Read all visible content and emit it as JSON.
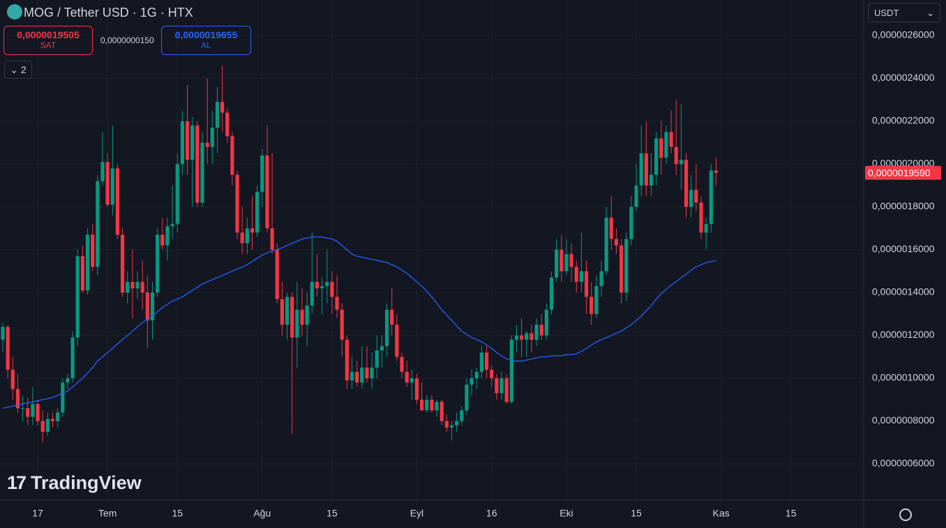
{
  "ui": {
    "symbol": "MOG / Tether USD · 1G · HTX",
    "sell_price": "0,0000019505",
    "sell_label": "SAT",
    "spread": "0,0000000150",
    "buy_price": "0,0000019655",
    "buy_label": "AL",
    "indicators": "2",
    "currency": "USDT",
    "brand": "TradingView"
  },
  "chart_data": {
    "type": "candlestick",
    "categories": [
      null,
      null,
      null,
      null,
      null,
      null,
      null,
      "17",
      null,
      null,
      null,
      null,
      null,
      null,
      null,
      null,
      null,
      null,
      null,
      null,
      null,
      "Tem",
      null,
      null,
      null,
      null,
      null,
      null,
      null,
      null,
      null,
      null,
      null,
      null,
      null,
      "15",
      null,
      null,
      null,
      null,
      null,
      null,
      null,
      null,
      null,
      null,
      null,
      null,
      null,
      null,
      null,
      null,
      "Ağu",
      null,
      null,
      null,
      null,
      null,
      null,
      null,
      null,
      null,
      null,
      null,
      null,
      null,
      "15",
      null,
      null,
      null,
      null,
      null,
      null,
      null,
      null,
      null,
      null,
      null,
      null,
      null,
      null,
      null,
      null,
      "Eyl",
      null,
      null,
      null,
      null,
      null,
      null,
      null,
      null,
      null,
      null,
      null,
      null,
      null,
      null,
      "16",
      null,
      null,
      null,
      null,
      null,
      null,
      null,
      null,
      null,
      null,
      null,
      null,
      null,
      null,
      "Eki",
      null,
      null,
      null,
      null,
      null,
      null,
      null,
      null,
      null,
      null,
      null,
      null,
      null,
      "15",
      null,
      null,
      null,
      null,
      null,
      null,
      null,
      null,
      null,
      null,
      null,
      null,
      null,
      null,
      null,
      null,
      "Kas",
      null,
      null,
      null,
      null,
      null,
      null,
      null,
      null,
      null,
      null,
      null,
      null,
      null,
      "15",
      null,
      null,
      null,
      null,
      null,
      null,
      null,
      null,
      null,
      null,
      null,
      null,
      null,
      null
    ],
    "open": [
      1.18e-06,
      1.24e-06,
      1.04e-06,
      9.5e-07,
      8.6e-07,
      8.6e-07,
      8.2e-07,
      8.8e-07,
      8e-07,
      7.5e-07,
      8.1e-07,
      8e-07,
      8.4e-07,
      9.8e-07,
      1e-06,
      1.19e-06,
      1.57e-06,
      1.41e-06,
      1.67e-06,
      1.52e-06,
      1.92e-06,
      2.01e-06,
      1.81e-06,
      1.98e-06,
      1.67e-06,
      1.4e-06,
      1.45e-06,
      1.42e-06,
      1.45e-06,
      1.4e-06,
      1.27e-06,
      1.4e-06,
      1.67e-06,
      1.62e-06,
      1.71e-06,
      1.72e-06,
      2e-06,
      2.2e-06,
      2.02e-06,
      2.18e-06,
      1.82e-06,
      2.1e-06,
      2.08e-06,
      2.17e-06,
      2.29e-06,
      2.24e-06,
      2.13e-06,
      1.95e-06,
      1.68e-06,
      1.63e-06,
      1.7e-06,
      1.68e-06,
      1.87e-06,
      2.04e-06,
      1.7e-06,
      1.6e-06,
      1.37e-06,
      1.25e-06,
      1.38e-06,
      1.19e-06,
      1.32e-06,
      1.25e-06,
      1.34e-06,
      1.45e-06,
      1.42e-06,
      1.43e-06,
      1.45e-06,
      1.38e-06,
      1.32e-06,
      1.18e-06,
      9.9e-07,
      1.03e-06,
      9.8e-07,
      1.05e-06,
      1e-06,
      1.05e-06,
      1.13e-06,
      1.15e-06,
      1.32e-06,
      1.25e-06,
      1.1e-06,
      1.03e-06,
      9.8e-07,
      1e-06,
      9e-07,
      8.5e-07,
      9e-07,
      8.5e-07,
      8.9e-07,
      8e-07,
      7.7e-07,
      7.8e-07,
      8e-07,
      8.5e-07,
      9.7e-07,
      1e-06,
      1.03e-06,
      1.12e-06,
      1.04e-06,
      1e-06,
      9.3e-07,
      1e-06,
      8.9e-07,
      1.18e-06,
      1.2e-06,
      1.18e-06,
      1.21e-06,
      1.18e-06,
      1.25e-06,
      1.2e-06,
      1.32e-06,
      1.47e-06,
      1.6e-06,
      1.5e-06,
      1.58e-06,
      1.52e-06,
      1.45e-06,
      1.5e-06,
      1.38e-06,
      1.3e-06,
      1.43e-06,
      1.5e-06,
      1.75e-06,
      1.65e-06,
      1.62e-06,
      1.4e-06,
      1.65e-06,
      1.8e-06,
      1.9e-06,
      2.05e-06,
      1.9e-06,
      1.95e-06,
      2.12e-06,
      2.03e-06,
      2.15e-06,
      2.08e-06,
      2e-06,
      2.02e-06,
      1.8e-06,
      1.88e-06,
      1.82e-06,
      1.68e-06,
      1.72e-06,
      1.97e-06,
      null,
      null,
      null,
      null,
      null,
      null,
      null,
      null,
      null,
      null,
      null,
      null,
      null,
      null,
      null,
      null,
      null,
      null,
      null,
      null,
      null,
      null,
      null,
      null,
      null,
      null,
      null,
      null,
      null
    ],
    "high": [
      1.26e-06,
      1.25e-06,
      1.1e-06,
      1.02e-06,
      9.2e-07,
      9.1e-07,
      9.6e-07,
      9e-07,
      8.5e-07,
      8.4e-07,
      8.4e-07,
      8.6e-07,
      1e-06,
      1.02e-06,
      1.22e-06,
      1.6e-06,
      1.62e-06,
      1.7e-06,
      1.72e-06,
      1.95e-06,
      2.15e-06,
      2.05e-06,
      2.18e-06,
      2e-06,
      1.7e-06,
      1.5e-06,
      1.6e-06,
      1.5e-06,
      1.55e-06,
      1.48e-06,
      1.45e-06,
      1.7e-06,
      1.75e-06,
      1.75e-06,
      1.9e-06,
      2.05e-06,
      2.25e-06,
      2.37e-06,
      2.22e-06,
      2.2e-06,
      2.15e-06,
      2.4e-06,
      2.25e-06,
      2.36e-06,
      2.46e-06,
      2.26e-06,
      2.15e-06,
      1.97e-06,
      1.8e-06,
      1.75e-06,
      1.85e-06,
      1.9e-06,
      2.07e-06,
      2.18e-06,
      2.05e-06,
      1.63e-06,
      1.45e-06,
      1.4e-06,
      1.4e-06,
      1.45e-06,
      1.42e-06,
      1.4e-06,
      1.68e-06,
      1.58e-06,
      1.47e-06,
      1.6e-06,
      1.5e-06,
      1.48e-06,
      1.35e-06,
      1.2e-06,
      1.1e-06,
      1.08e-06,
      1.15e-06,
      1.15e-06,
      1.12e-06,
      1.2e-06,
      1.2e-06,
      1.35e-06,
      1.42e-06,
      1.3e-06,
      1.12e-06,
      1.08e-06,
      1.04e-06,
      1.02e-06,
      9.8e-07,
      9.2e-07,
      9.2e-07,
      9e-07,
      9e-07,
      8.3e-07,
      8e-07,
      8.4e-07,
      8.7e-07,
      1e-06,
      1.04e-06,
      1.05e-06,
      1.15e-06,
      1.15e-06,
      1.06e-06,
      1.02e-06,
      1.03e-06,
      1.02e-06,
      1.2e-06,
      1.25e-06,
      1.28e-06,
      1.22e-06,
      1.25e-06,
      1.28e-06,
      1.3e-06,
      1.35e-06,
      1.5e-06,
      1.65e-06,
      1.67e-06,
      1.65e-06,
      1.63e-06,
      1.55e-06,
      1.68e-06,
      1.55e-06,
      1.45e-06,
      1.48e-06,
      1.55e-06,
      1.8e-06,
      1.85e-06,
      1.7e-06,
      1.65e-06,
      1.68e-06,
      1.85e-06,
      2e-06,
      2.18e-06,
      2.2e-06,
      2.05e-06,
      2.15e-06,
      2.2e-06,
      2.18e-06,
      2.25e-06,
      2.3e-06,
      2.28e-06,
      2.05e-06,
      1.95e-06,
      2e-06,
      1.85e-06,
      1.75e-06,
      2e-06,
      2.03e-06,
      null,
      null,
      null,
      null,
      null,
      null,
      null,
      null,
      null,
      null,
      null,
      null,
      null,
      null,
      null,
      null,
      null,
      null,
      null,
      null,
      null,
      null,
      null,
      null,
      null,
      null,
      null,
      null,
      null
    ],
    "low": [
      1.12e-06,
      1e-06,
      9e-07,
      8.4e-07,
      8e-07,
      7.8e-07,
      7.8e-07,
      7.8e-07,
      7e-07,
      7.3e-07,
      7.7e-07,
      7.7e-07,
      8.2e-07,
      9.5e-07,
      9.8e-07,
      1.15e-06,
      1.4e-06,
      1.39e-06,
      1.5e-06,
      1.48e-06,
      1.9e-06,
      1.8e-06,
      1.76e-06,
      1.65e-06,
      1.38e-06,
      1.35e-06,
      1.28e-06,
      1.37e-06,
      1.32e-06,
      1.14e-06,
      1.18e-06,
      1.38e-06,
      1.6e-06,
      1.55e-06,
      1.65e-06,
      1.68e-06,
      1.95e-06,
      1.95e-06,
      1.8e-06,
      1.8e-06,
      1.8e-06,
      2e-06,
      2e-06,
      2.05e-06,
      2.15e-06,
      2.1e-06,
      1.9e-06,
      1.65e-06,
      1.58e-06,
      1.58e-06,
      1.6e-06,
      1.66e-06,
      1.8e-06,
      1.68e-06,
      1.58e-06,
      1.35e-06,
      1.2e-06,
      1.18e-06,
      7.4e-07,
      1.05e-06,
      1.2e-06,
      1.15e-06,
      1.3e-06,
      1.38e-06,
      1.3e-06,
      1.35e-06,
      1.3e-06,
      1.28e-06,
      1.1e-06,
      9.5e-07,
      9.5e-07,
      9.6e-07,
      9.5e-07,
      9.8e-07,
      9.5e-07,
      1e-06,
      1.05e-06,
      1.1e-06,
      1.2e-06,
      1.08e-06,
      1e-06,
      9.6e-07,
      9e-07,
      8.8e-07,
      8.5e-07,
      8.4e-07,
      8.4e-07,
      8.2e-07,
      7.8e-07,
      7.5e-07,
      7.1e-07,
      7.5e-07,
      7.8e-07,
      8.3e-07,
      9.2e-07,
      9.5e-07,
      1e-06,
      1e-06,
      9.6e-07,
      9e-07,
      9e-07,
      8.8e-07,
      8.8e-07,
      1.12e-06,
      1.1e-06,
      1.1e-06,
      1.12e-06,
      1.15e-06,
      1.18e-06,
      1.18e-06,
      1.3e-06,
      1.45e-06,
      1.45e-06,
      1.48e-06,
      1.45e-06,
      1.4e-06,
      1.4e-06,
      1.3e-06,
      1.25e-06,
      1.28e-06,
      1.38e-06,
      1.48e-06,
      1.6e-06,
      1.58e-06,
      1.35e-06,
      1.36e-06,
      1.62e-06,
      1.78e-06,
      1.85e-06,
      1.85e-06,
      1.85e-06,
      1.9e-06,
      1.95e-06,
      2e-06,
      2.05e-06,
      1.95e-06,
      1.88e-06,
      1.75e-06,
      1.75e-06,
      1.78e-06,
      1.65e-06,
      1.6e-06,
      1.68e-06,
      1.9e-06,
      null,
      null,
      null,
      null,
      null,
      null,
      null,
      null,
      null,
      null,
      null,
      null,
      null,
      null,
      null,
      null,
      null,
      null,
      null,
      null,
      null,
      null,
      null,
      null,
      null,
      null,
      null,
      null,
      null
    ],
    "close": [
      1.24e-06,
      1.04e-06,
      9.5e-07,
      8.6e-07,
      8.6e-07,
      8.2e-07,
      8.8e-07,
      8e-07,
      7.5e-07,
      8.1e-07,
      8e-07,
      8.4e-07,
      9.8e-07,
      1e-06,
      1.19e-06,
      1.57e-06,
      1.41e-06,
      1.67e-06,
      1.52e-06,
      1.92e-06,
      2.01e-06,
      1.81e-06,
      1.98e-06,
      1.67e-06,
      1.4e-06,
      1.45e-06,
      1.42e-06,
      1.45e-06,
      1.4e-06,
      1.27e-06,
      1.4e-06,
      1.67e-06,
      1.62e-06,
      1.71e-06,
      1.72e-06,
      2e-06,
      2.2e-06,
      2.02e-06,
      2.18e-06,
      1.82e-06,
      2.1e-06,
      2.08e-06,
      2.17e-06,
      2.29e-06,
      2.24e-06,
      2.13e-06,
      1.95e-06,
      1.68e-06,
      1.63e-06,
      1.7e-06,
      1.68e-06,
      1.87e-06,
      2.04e-06,
      1.7e-06,
      1.6e-06,
      1.37e-06,
      1.25e-06,
      1.38e-06,
      1.19e-06,
      1.32e-06,
      1.25e-06,
      1.34e-06,
      1.45e-06,
      1.42e-06,
      1.43e-06,
      1.45e-06,
      1.38e-06,
      1.32e-06,
      1.18e-06,
      9.9e-07,
      1.03e-06,
      9.8e-07,
      1.05e-06,
      1e-06,
      1.05e-06,
      1.13e-06,
      1.15e-06,
      1.32e-06,
      1.25e-06,
      1.1e-06,
      1.03e-06,
      9.8e-07,
      1e-06,
      9e-07,
      8.5e-07,
      9e-07,
      8.5e-07,
      8.9e-07,
      8e-07,
      7.7e-07,
      7.8e-07,
      8e-07,
      8.5e-07,
      9.7e-07,
      1e-06,
      1.03e-06,
      1.12e-06,
      1.04e-06,
      1e-06,
      9.3e-07,
      1e-06,
      8.9e-07,
      1.18e-06,
      1.2e-06,
      1.18e-06,
      1.21e-06,
      1.18e-06,
      1.25e-06,
      1.2e-06,
      1.32e-06,
      1.47e-06,
      1.6e-06,
      1.5e-06,
      1.58e-06,
      1.52e-06,
      1.45e-06,
      1.5e-06,
      1.38e-06,
      1.3e-06,
      1.43e-06,
      1.5e-06,
      1.75e-06,
      1.65e-06,
      1.62e-06,
      1.4e-06,
      1.65e-06,
      1.8e-06,
      1.9e-06,
      2.05e-06,
      1.9e-06,
      1.95e-06,
      2.12e-06,
      2.03e-06,
      2.15e-06,
      2.08e-06,
      2e-06,
      2.02e-06,
      1.8e-06,
      1.88e-06,
      1.82e-06,
      1.68e-06,
      1.72e-06,
      1.97e-06,
      1.959e-06,
      null,
      null,
      null,
      null,
      null,
      null,
      null,
      null,
      null,
      null,
      null,
      null,
      null,
      null,
      null,
      null,
      null,
      null,
      null,
      null,
      null,
      null,
      null,
      null,
      null,
      null,
      null,
      null,
      null
    ],
    "up_color": "#089981",
    "down_color": "#f23645",
    "line": {
      "color": "#2962ff",
      "values": [
        8.6e-07,
        8.65e-07,
        8.7e-07,
        8.75e-07,
        8.8e-07,
        8.85e-07,
        8.9e-07,
        8.95e-07,
        9e-07,
        9.05e-07,
        9.1e-07,
        9.2e-07,
        9.3e-07,
        9.4e-07,
        9.6e-07,
        9.8e-07,
        1e-06,
        1.025e-06,
        1.05e-06,
        1.08e-06,
        1.1e-06,
        1.12e-06,
        1.14e-06,
        1.16e-06,
        1.18e-06,
        1.2e-06,
        1.22e-06,
        1.24e-06,
        1.26e-06,
        1.275e-06,
        1.29e-06,
        1.31e-06,
        1.33e-06,
        1.345e-06,
        1.36e-06,
        1.37e-06,
        1.38e-06,
        1.395e-06,
        1.41e-06,
        1.425e-06,
        1.44e-06,
        1.45e-06,
        1.46e-06,
        1.47e-06,
        1.48e-06,
        1.49e-06,
        1.5e-06,
        1.51e-06,
        1.52e-06,
        1.53e-06,
        1.545e-06,
        1.56e-06,
        1.575e-06,
        1.585e-06,
        1.595e-06,
        1.6e-06,
        1.61e-06,
        1.62e-06,
        1.63e-06,
        1.64e-06,
        1.65e-06,
        1.655e-06,
        1.66e-06,
        1.66e-06,
        1.66e-06,
        1.655e-06,
        1.65e-06,
        1.64e-06,
        1.62e-06,
        1.6e-06,
        1.58e-06,
        1.57e-06,
        1.565e-06,
        1.56e-06,
        1.555e-06,
        1.55e-06,
        1.545e-06,
        1.54e-06,
        1.53e-06,
        1.52e-06,
        1.505e-06,
        1.49e-06,
        1.47e-06,
        1.45e-06,
        1.43e-06,
        1.405e-06,
        1.38e-06,
        1.35e-06,
        1.32e-06,
        1.295e-06,
        1.27e-06,
        1.245e-06,
        1.22e-06,
        1.205e-06,
        1.19e-06,
        1.18e-06,
        1.17e-06,
        1.155e-06,
        1.14e-06,
        1.12e-06,
        1.105e-06,
        1.09e-06,
        1.085e-06,
        1.08e-06,
        1.08e-06,
        1.085e-06,
        1.09e-06,
        1.095e-06,
        1.1e-06,
        1.1e-06,
        1.105e-06,
        1.105e-06,
        1.105e-06,
        1.11e-06,
        1.11e-06,
        1.115e-06,
        1.125e-06,
        1.14e-06,
        1.155e-06,
        1.17e-06,
        1.18e-06,
        1.19e-06,
        1.2e-06,
        1.21e-06,
        1.22e-06,
        1.235e-06,
        1.25e-06,
        1.27e-06,
        1.29e-06,
        1.315e-06,
        1.34e-06,
        1.37e-06,
        1.395e-06,
        1.415e-06,
        1.435e-06,
        1.45e-06,
        1.47e-06,
        1.485e-06,
        1.505e-06,
        1.52e-06,
        1.53e-06,
        1.54e-06,
        1.545e-06,
        1.55e-06,
        null,
        null,
        null,
        null,
        null,
        null,
        null,
        null,
        null,
        null,
        null,
        null,
        null,
        null,
        null,
        null,
        null,
        null,
        null,
        null,
        null,
        null,
        null,
        null,
        null,
        null,
        null,
        null,
        null
      ]
    },
    "ylim": [
      4.31e-07,
      2.766e-06
    ],
    "yticks": [
      {
        "value": 2.6e-06,
        "label": "0,0000026000"
      },
      {
        "value": 2.4e-06,
        "label": "0,0000024000"
      },
      {
        "value": 2.2e-06,
        "label": "0,0000022000"
      },
      {
        "value": 2e-06,
        "label": "0,0000020000"
      },
      {
        "value": 1.8e-06,
        "label": "0,0000018000"
      },
      {
        "value": 1.6e-06,
        "label": "0,0000016000"
      },
      {
        "value": 1.4e-06,
        "label": "0,0000014000"
      },
      {
        "value": 1.2e-06,
        "label": "0,0000012000"
      },
      {
        "value": 1e-06,
        "label": "0,0000010000"
      },
      {
        "value": 8e-07,
        "label": "0,0000008000"
      },
      {
        "value": 6e-07,
        "label": "0,0000006000"
      }
    ],
    "last_price": {
      "value": 1.959e-06,
      "label": "0,0000019590"
    },
    "grid": true
  }
}
